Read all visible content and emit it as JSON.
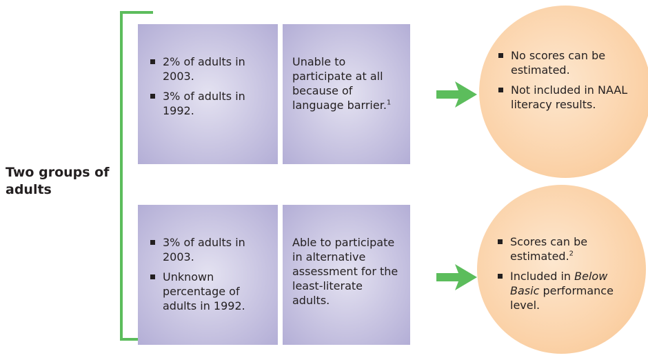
{
  "label": "Two groups of adults",
  "groups": [
    {
      "stats": [
        "2% of adults in 2003.",
        "3% of adults in 1992."
      ],
      "description": [
        {
          "text": "Unable to participate at all because of language barrier."
        },
        {
          "sup": "1"
        }
      ],
      "outcomes": [
        [
          {
            "text": "No scores can be estimated."
          }
        ],
        [
          {
            "text": "Not included in NAAL literacy results."
          }
        ]
      ]
    },
    {
      "stats": [
        "3% of adults in 2003.",
        "Unknown percentage of adults in 1992."
      ],
      "description": [
        {
          "text": "Able to participate in alternative assessment for the least-literate adults."
        }
      ],
      "outcomes": [
        [
          {
            "text": "Scores can be estimated."
          },
          {
            "sup": "2"
          }
        ],
        [
          {
            "text": "Included in "
          },
          {
            "em": "Below Basic"
          },
          {
            "text": " performance level."
          }
        ]
      ]
    }
  ]
}
